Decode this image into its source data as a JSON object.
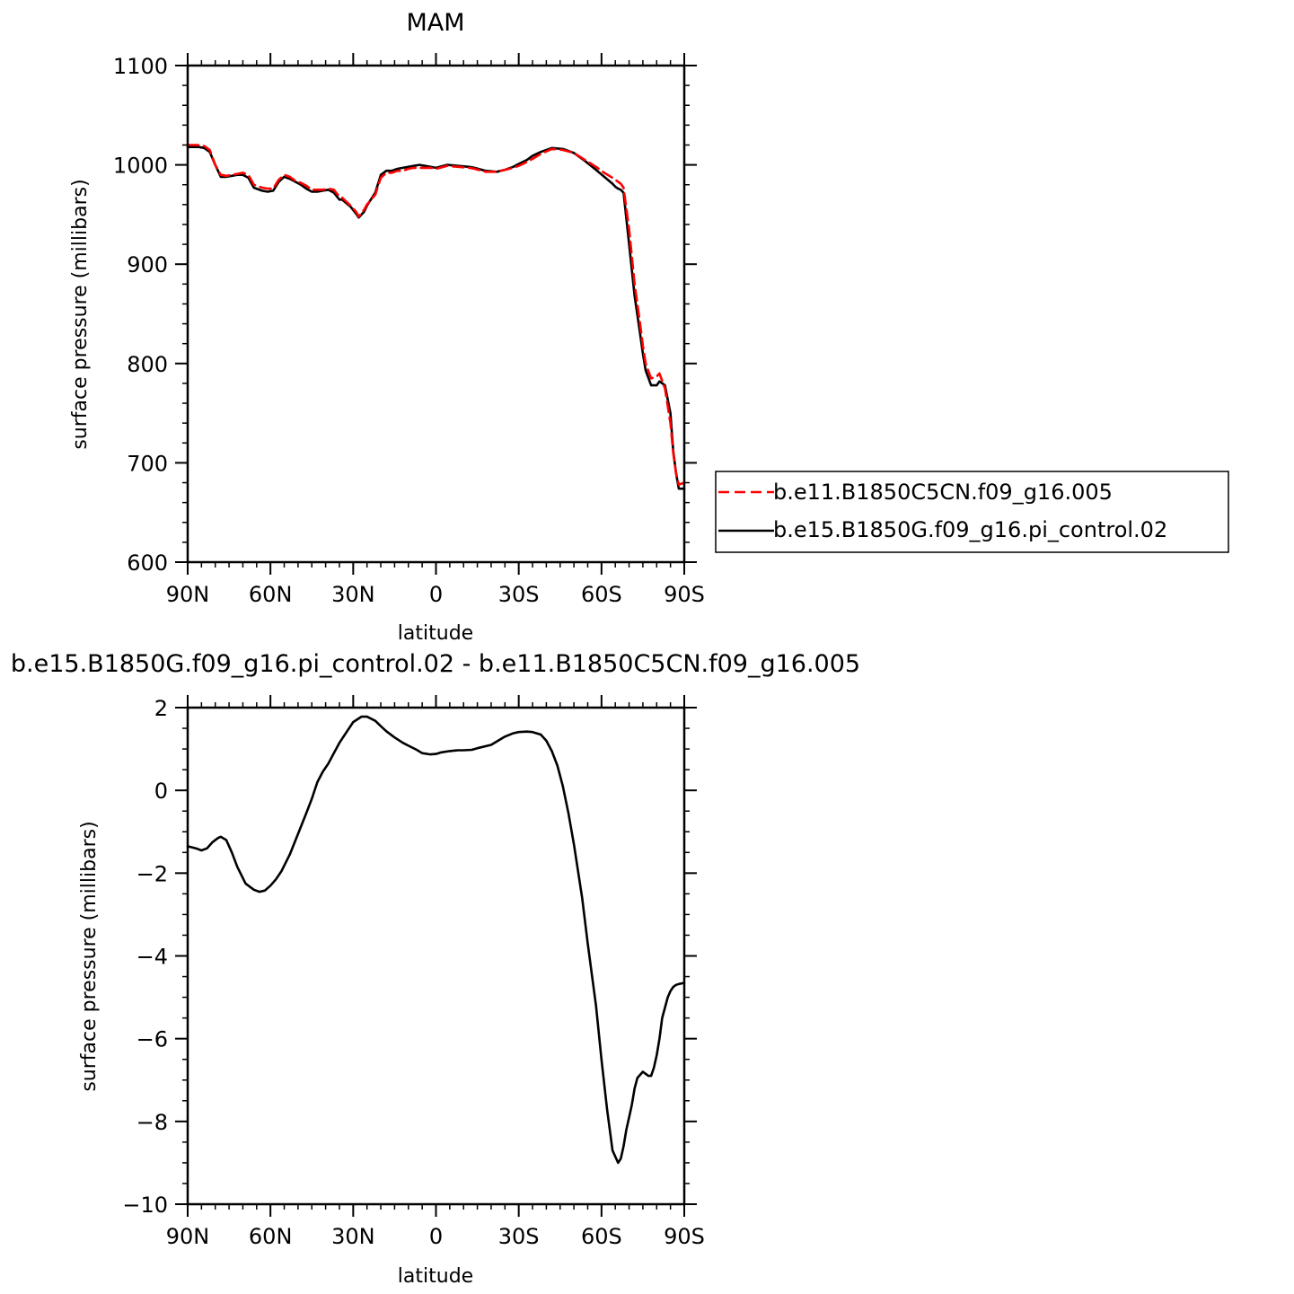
{
  "chart_data": [
    {
      "type": "line",
      "title": "MAM",
      "xlabel": "latitude",
      "ylabel": "surface pressure (millibars)",
      "xlim": [
        90,
        -90
      ],
      "ylim": [
        600,
        1100
      ],
      "xticks": [
        {
          "value": 90,
          "label": "90N"
        },
        {
          "value": 60,
          "label": "60N"
        },
        {
          "value": 30,
          "label": "30N"
        },
        {
          "value": 0,
          "label": "0"
        },
        {
          "value": -30,
          "label": "30S"
        },
        {
          "value": -60,
          "label": "60S"
        },
        {
          "value": -90,
          "label": "90S"
        }
      ],
      "yticks": [
        {
          "value": 600,
          "label": "600"
        },
        {
          "value": 700,
          "label": "700"
        },
        {
          "value": 800,
          "label": "800"
        },
        {
          "value": 900,
          "label": "900"
        },
        {
          "value": 1000,
          "label": "1000"
        },
        {
          "value": 1100,
          "label": "1100"
        }
      ],
      "grid": false,
      "legend": "outside-right",
      "series": [
        {
          "name": "b.e11.B1850C5CN.f09_g16.005",
          "color": "#ff0000",
          "dash": "dashed",
          "x": [
            90,
            86,
            84,
            82,
            80,
            78,
            76,
            74,
            72,
            70,
            68,
            66,
            63,
            61,
            59,
            57,
            55,
            53,
            51,
            49,
            47,
            45,
            43,
            41,
            39,
            37,
            35,
            34,
            31,
            29,
            28,
            26,
            25,
            22,
            20,
            18,
            16,
            14,
            12,
            10,
            8,
            6,
            4,
            2,
            0,
            -4,
            -8,
            -12,
            -14,
            -18,
            -22,
            -25,
            -28,
            -30,
            -33,
            -35,
            -38,
            -42,
            -46,
            -50,
            -54,
            -58,
            -61,
            -64,
            -65,
            -66,
            -67,
            -68,
            -70,
            -72,
            -74,
            -75,
            -76,
            -78,
            -80,
            -81,
            -83,
            -85,
            -86,
            -87,
            -88,
            -90
          ],
          "y": [
            1020,
            1020,
            1019,
            1015,
            1000,
            990,
            989,
            990,
            991,
            992,
            990,
            980,
            977,
            976,
            976,
            985,
            990,
            988,
            984,
            982,
            979,
            975,
            975,
            975,
            976,
            975,
            968,
            967,
            959,
            953,
            948,
            955,
            960,
            970,
            987,
            992,
            992,
            994,
            994,
            996,
            997,
            997,
            997,
            997,
            996,
            999,
            998,
            997,
            996,
            993,
            993,
            995,
            997,
            999,
            1003,
            1006,
            1011,
            1016,
            1015,
            1012,
            1005,
            998,
            992,
            987,
            985,
            983,
            981,
            977,
            935,
            880,
            840,
            818,
            800,
            785,
            787,
            790,
            775,
            740,
            710,
            690,
            678,
            680
          ]
        },
        {
          "name": "b.e15.B1850G.f09_g16.pi_control.02",
          "color": "#000000",
          "dash": "solid",
          "x": [
            90,
            86,
            84,
            82,
            80,
            78,
            76,
            74,
            72,
            70,
            68,
            66,
            63,
            61,
            59,
            57,
            55,
            53,
            51,
            49,
            47,
            45,
            43,
            41,
            39,
            37,
            35,
            34,
            31,
            29,
            28,
            26,
            25,
            22,
            20,
            18,
            16,
            14,
            12,
            10,
            8,
            6,
            4,
            2,
            0,
            -4,
            -8,
            -12,
            -14,
            -18,
            -22,
            -25,
            -28,
            -30,
            -33,
            -35,
            -38,
            -42,
            -46,
            -50,
            -54,
            -58,
            -61,
            -64,
            -65,
            -66,
            -67,
            -68,
            -70,
            -72,
            -74,
            -75,
            -76,
            -78,
            -80,
            -81,
            -83,
            -85,
            -86,
            -87,
            -88,
            -90
          ],
          "y": [
            1018,
            1018,
            1017,
            1013,
            1000,
            988,
            988,
            989,
            990,
            990,
            987,
            977,
            974,
            973,
            974,
            983,
            988,
            986,
            983,
            980,
            976,
            973,
            973,
            974,
            975,
            972,
            965,
            965,
            958,
            951,
            947,
            953,
            959,
            972,
            990,
            994,
            994,
            996,
            997,
            998,
            999,
            1000,
            999,
            998,
            997,
            1000,
            999,
            998,
            997,
            994,
            993,
            995,
            998,
            1001,
            1005,
            1009,
            1013,
            1017,
            1016,
            1012,
            1004,
            995,
            988,
            981,
            978,
            976,
            975,
            972,
            920,
            868,
            830,
            810,
            793,
            778,
            778,
            782,
            778,
            750,
            712,
            690,
            674,
            674
          ]
        }
      ]
    },
    {
      "type": "line",
      "title": "b.e15.B1850G.f09_g16.pi_control.02 - b.e11.B1850C5CN.f09_g16.005",
      "xlabel": "latitude",
      "ylabel": "surface pressure (millibars)",
      "xlim": [
        90,
        -90
      ],
      "ylim": [
        -10,
        2
      ],
      "xticks": [
        {
          "value": 90,
          "label": "90N"
        },
        {
          "value": 60,
          "label": "60N"
        },
        {
          "value": 30,
          "label": "30N"
        },
        {
          "value": 0,
          "label": "0"
        },
        {
          "value": -30,
          "label": "30S"
        },
        {
          "value": -60,
          "label": "60S"
        },
        {
          "value": -90,
          "label": "90S"
        }
      ],
      "yticks": [
        {
          "value": -10,
          "label": "−10"
        },
        {
          "value": -8,
          "label": "−8"
        },
        {
          "value": -6,
          "label": "−6"
        },
        {
          "value": -4,
          "label": "−4"
        },
        {
          "value": -2,
          "label": "−2"
        },
        {
          "value": 0,
          "label": "0"
        },
        {
          "value": 2,
          "label": "2"
        }
      ],
      "grid": false,
      "series": [
        {
          "color": "#000000",
          "dash": "solid",
          "x": [
            90,
            87,
            85,
            83,
            81,
            79,
            78,
            76,
            74,
            72,
            69,
            66,
            64,
            62,
            60,
            58,
            56,
            53,
            50,
            47,
            45,
            43,
            41,
            39,
            37,
            35,
            32,
            30,
            27,
            25,
            22,
            20,
            18,
            15,
            12,
            10,
            7,
            5,
            2,
            0,
            -2,
            -5,
            -8,
            -10,
            -13,
            -15,
            -20,
            -25,
            -28,
            -30,
            -33,
            -35,
            -38,
            -40,
            -42,
            -44,
            -46,
            -48,
            -50,
            -53,
            -55,
            -58,
            -60,
            -62,
            -64,
            -66,
            -67,
            -68,
            -69,
            -70,
            -71,
            -72,
            -73,
            -75,
            -76,
            -77,
            -78,
            -79,
            -80,
            -81,
            -82,
            -84,
            -85,
            -86,
            -87,
            -88,
            -90
          ],
          "y": [
            -1.35,
            -1.4,
            -1.45,
            -1.4,
            -1.25,
            -1.15,
            -1.12,
            -1.2,
            -1.5,
            -1.85,
            -2.25,
            -2.4,
            -2.45,
            -2.42,
            -2.3,
            -2.15,
            -1.95,
            -1.55,
            -1.05,
            -0.55,
            -0.2,
            0.2,
            0.45,
            0.65,
            0.9,
            1.15,
            1.45,
            1.65,
            1.78,
            1.78,
            1.68,
            1.55,
            1.43,
            1.28,
            1.15,
            1.08,
            0.98,
            0.9,
            0.87,
            0.88,
            0.92,
            0.95,
            0.97,
            0.97,
            0.98,
            1.02,
            1.1,
            1.3,
            1.38,
            1.41,
            1.42,
            1.41,
            1.35,
            1.2,
            0.95,
            0.6,
            0.1,
            -0.55,
            -1.3,
            -2.6,
            -3.7,
            -5.2,
            -6.5,
            -7.7,
            -8.7,
            -9.0,
            -8.9,
            -8.6,
            -8.2,
            -7.9,
            -7.6,
            -7.2,
            -6.95,
            -6.8,
            -6.85,
            -6.9,
            -6.9,
            -6.7,
            -6.4,
            -6.0,
            -5.5,
            -5.0,
            -4.85,
            -4.75,
            -4.7,
            -4.68,
            -4.65
          ]
        }
      ]
    }
  ]
}
